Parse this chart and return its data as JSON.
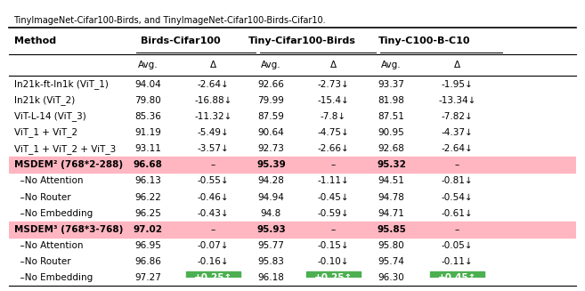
{
  "caption": "TinyImageNet-Cifar100-Birds, and TinyImageNet-Cifar100-Birds-Cifar10.",
  "group_labels": [
    "Birds-Cifar100",
    "Tiny-Cifar100-Birds",
    "Tiny-C100-B-C10"
  ],
  "rows": [
    {
      "method": "In21k-ft-In1k (ViT_1)",
      "bold": false,
      "pink": false,
      "vals": [
        "94.04",
        "-2.64↓",
        "92.66",
        "-2.73↓",
        "93.37",
        "-1.95↓"
      ]
    },
    {
      "method": "In21k (ViT_2)",
      "bold": false,
      "pink": false,
      "vals": [
        "79.80",
        "-16.88↓",
        "79.99",
        "-15.4↓",
        "81.98",
        "-13.34↓"
      ]
    },
    {
      "method": "ViT-L-14 (ViT_3)",
      "bold": false,
      "pink": false,
      "vals": [
        "85.36",
        "-11.32↓",
        "87.59",
        "-7.8↓",
        "87.51",
        "-7.82↓"
      ]
    },
    {
      "method": "ViT_1 + ViT_2",
      "bold": false,
      "pink": false,
      "vals": [
        "91.19",
        "-5.49↓",
        "90.64",
        "-4.75↓",
        "90.95",
        "-4.37↓"
      ]
    },
    {
      "method": "ViT_1 + ViT_2 + ViT_3",
      "bold": false,
      "pink": false,
      "vals": [
        "93.11",
        "-3.57↓",
        "92.73",
        "-2.66↓",
        "92.68",
        "-2.64↓"
      ]
    },
    {
      "method": "MSDEM² (768*2-288)",
      "bold": true,
      "pink": true,
      "vals": [
        "96.68",
        "–",
        "95.39",
        "–",
        "95.32",
        "–"
      ]
    },
    {
      "method": "  –No Attention",
      "bold": false,
      "pink": false,
      "vals": [
        "96.13",
        "-0.55↓",
        "94.28",
        "-1.11↓",
        "94.51",
        "-0.81↓"
      ]
    },
    {
      "method": "  –No Router",
      "bold": false,
      "pink": false,
      "vals": [
        "96.22",
        "-0.46↓",
        "94.94",
        "-0.45↓",
        "94.78",
        "-0.54↓"
      ]
    },
    {
      "method": "  –No Embedding",
      "bold": false,
      "pink": false,
      "vals": [
        "96.25",
        "-0.43↓",
        "94.8",
        "-0.59↓",
        "94.71",
        "-0.61↓"
      ]
    },
    {
      "method": "MSDEM³ (768*3-768)",
      "bold": true,
      "pink": true,
      "vals": [
        "97.02",
        "–",
        "95.93",
        "–",
        "95.85",
        "–"
      ]
    },
    {
      "method": "  –No Attention",
      "bold": false,
      "pink": false,
      "vals": [
        "96.95",
        "-0.07↓",
        "95.77",
        "-0.15↓",
        "95.80",
        "-0.05↓"
      ]
    },
    {
      "method": "  –No Router",
      "bold": false,
      "pink": false,
      "vals": [
        "96.86",
        "-0.16↓",
        "95.83",
        "-0.10↓",
        "95.74",
        "-0.11↓"
      ]
    },
    {
      "method": "  –No Embedding",
      "bold": false,
      "pink": false,
      "vals": [
        "97.27",
        "+0.25↑",
        "96.18",
        "+0.25↑",
        "96.30",
        "+0.45↑"
      ],
      "green_delta": true
    }
  ],
  "pink_color": "#ffb6c1",
  "green_color": "#4caf50"
}
